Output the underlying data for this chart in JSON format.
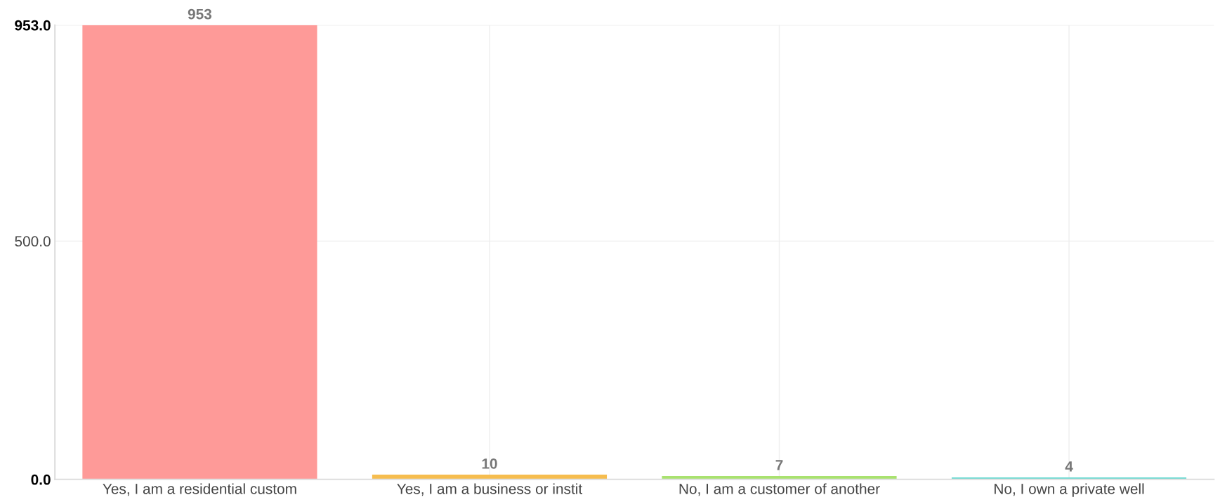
{
  "chart_data": {
    "type": "bar",
    "categories": [
      "Yes, I am a residential custom",
      "Yes, I am a business or instit",
      "No, I am a customer of another",
      "No, I own a private well"
    ],
    "values": [
      953,
      10,
      7,
      4
    ],
    "colors": [
      "#fe9a98",
      "#f6bd4f",
      "#a9e26f",
      "#66d9d0"
    ],
    "ylim": [
      0,
      953
    ],
    "yticks": [
      {
        "value": 0,
        "label": "0.0"
      },
      {
        "value": 500,
        "label": "500.0"
      },
      {
        "value": 953,
        "label": "953.0"
      }
    ],
    "grid": true,
    "data_labels": true
  }
}
